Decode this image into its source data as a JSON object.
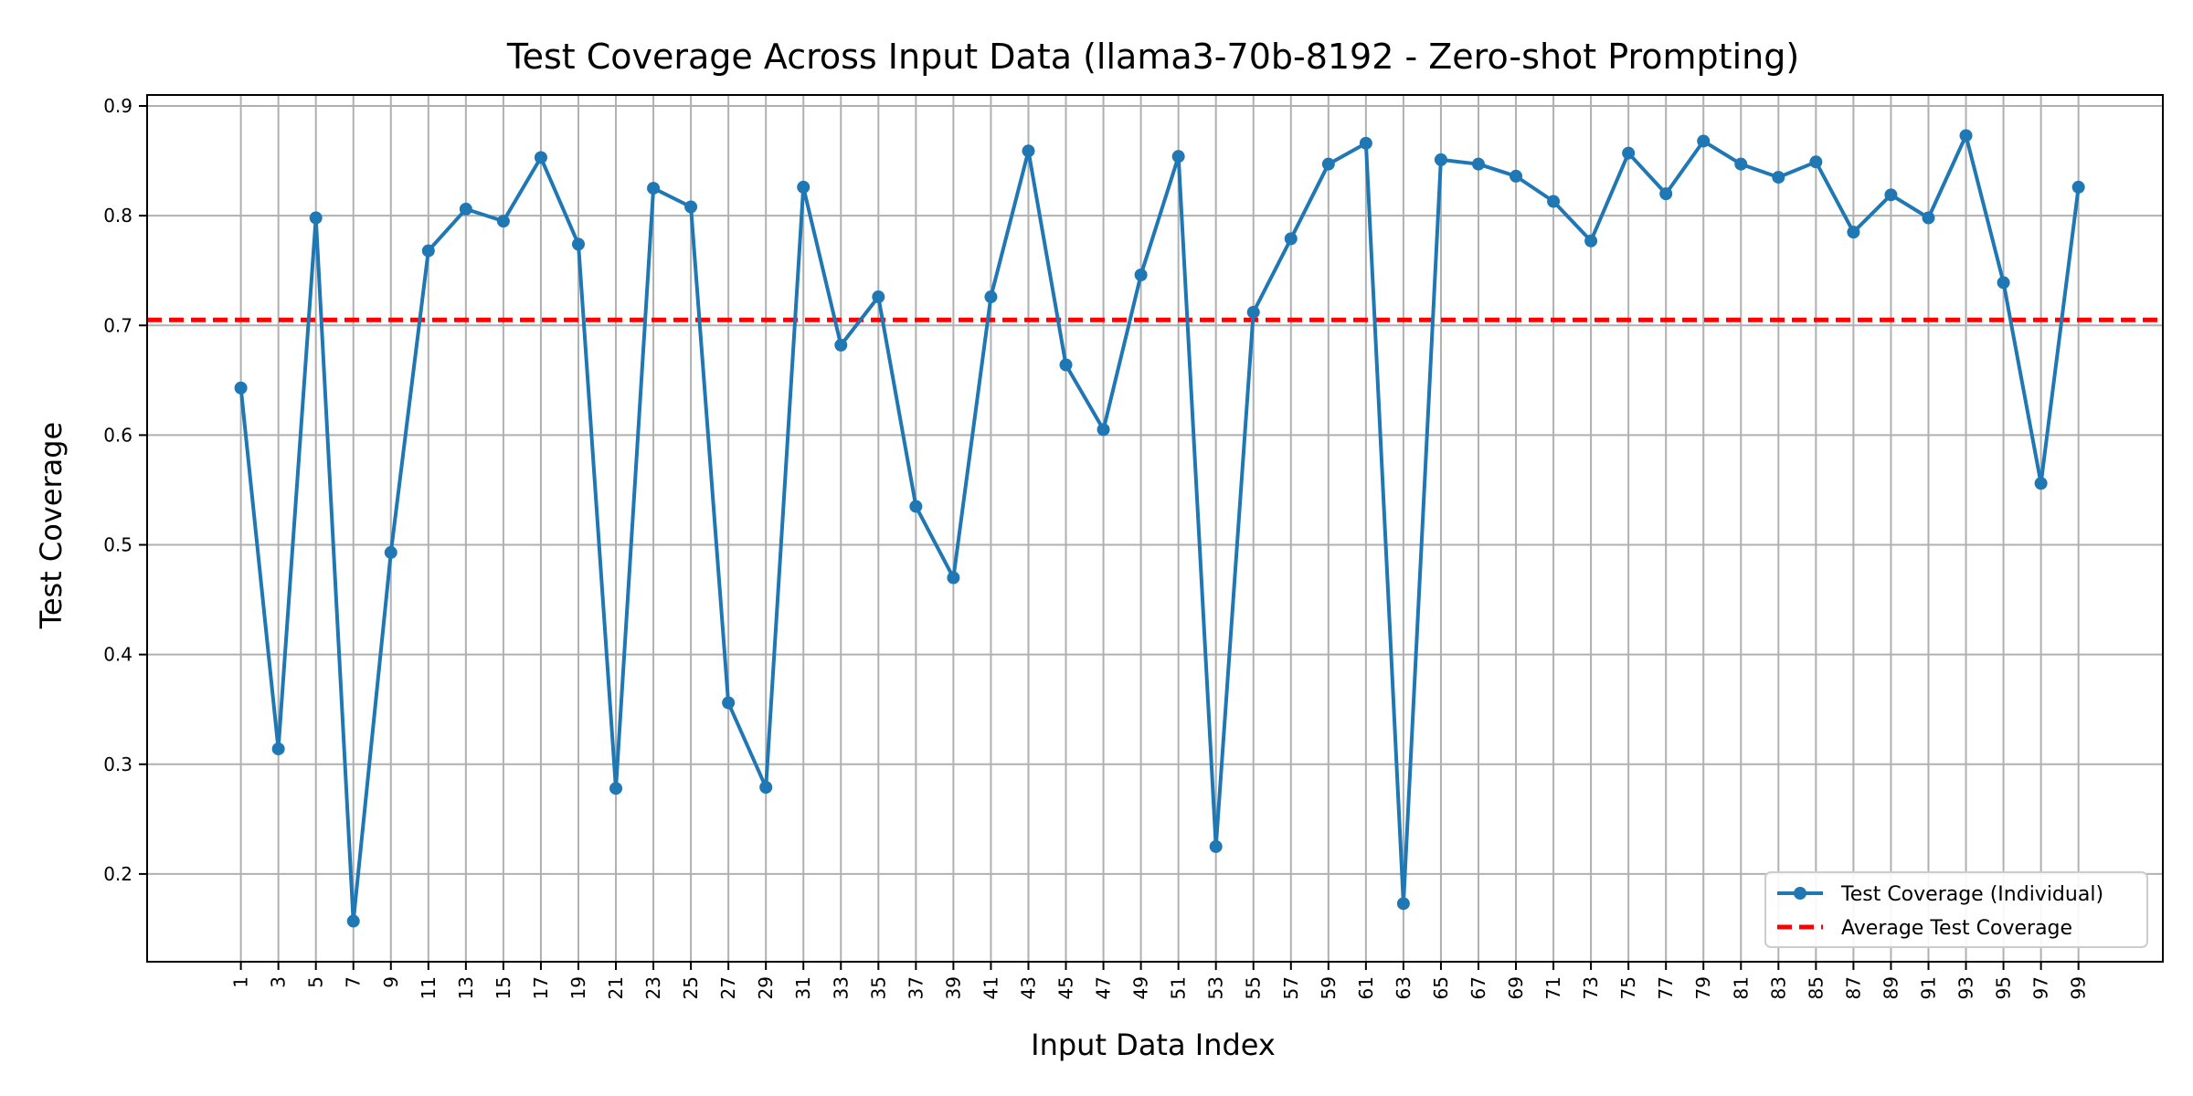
{
  "chart_data": {
    "type": "line",
    "title": "Test Coverage Across Input Data (llama3-70b-8192 - Zero-shot Prompting)",
    "xlabel": "Input Data Index",
    "ylabel": "Test Coverage",
    "xlim": [
      -4.0,
      103.5
    ],
    "ylim": [
      0.12,
      0.91
    ],
    "xticks": [
      1,
      3,
      5,
      7,
      9,
      11,
      13,
      15,
      17,
      19,
      21,
      23,
      25,
      27,
      29,
      31,
      33,
      35,
      37,
      39,
      41,
      43,
      45,
      47,
      49,
      51,
      53,
      55,
      57,
      59,
      61,
      63,
      65,
      67,
      69,
      71,
      73,
      75,
      77,
      79,
      81,
      83,
      85,
      87,
      89,
      91,
      93,
      95,
      97,
      99
    ],
    "yticks": [
      0.2,
      0.3,
      0.4,
      0.5,
      0.6,
      0.7,
      0.8,
      0.9
    ],
    "grid": true,
    "legend_position": "lower-right",
    "colors": {
      "series": "#1f77b4",
      "average": "#ff0000",
      "grid": "#b0b0b0"
    },
    "series": [
      {
        "name": "Test Coverage (Individual)",
        "x": [
          1,
          3,
          5,
          7,
          9,
          11,
          13,
          15,
          17,
          19,
          21,
          23,
          25,
          27,
          29,
          31,
          33,
          35,
          37,
          39,
          41,
          43,
          45,
          47,
          49,
          51,
          53,
          55,
          57,
          59,
          61,
          63,
          65,
          67,
          69,
          71,
          73,
          75,
          77,
          79,
          81,
          83,
          85,
          87,
          89,
          91,
          93,
          95,
          97,
          99
        ],
        "y": [
          0.643,
          0.314,
          0.798,
          0.157,
          0.493,
          0.768,
          0.806,
          0.795,
          0.853,
          0.774,
          0.278,
          0.825,
          0.808,
          0.356,
          0.279,
          0.826,
          0.682,
          0.726,
          0.535,
          0.47,
          0.726,
          0.859,
          0.664,
          0.605,
          0.746,
          0.854,
          0.225,
          0.712,
          0.779,
          0.847,
          0.866,
          0.173,
          0.851,
          0.847,
          0.836,
          0.813,
          0.777,
          0.857,
          0.82,
          0.868,
          0.847,
          0.835,
          0.849,
          0.785,
          0.819,
          0.798,
          0.873,
          0.739,
          0.556,
          0.826
        ]
      }
    ],
    "average": {
      "name": "Average Test Coverage",
      "value": 0.705
    }
  }
}
